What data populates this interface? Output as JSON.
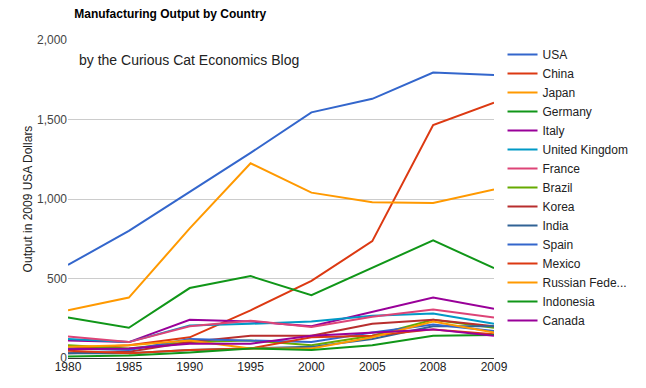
{
  "chart_data": {
    "type": "line",
    "title": "Manufacturing Output by Country",
    "annotations": [
      "by the Curious Cat Economics Blog"
    ],
    "y_label": "Output in 2009 USA Dollars",
    "categories": [
      "1980",
      "1985",
      "1990",
      "1995",
      "2000",
      "2005",
      "2008",
      "2009"
    ],
    "series": [
      {
        "name": "USA",
        "color": "#3366cc",
        "values": [
          585,
          800,
          1045,
          1290,
          1545,
          1630,
          1795,
          1780
        ]
      },
      {
        "name": "China",
        "color": "#dc3912",
        "values": [
          60,
          80,
          130,
          300,
          485,
          735,
          1465,
          1605
        ]
      },
      {
        "name": "Japan",
        "color": "#ff9900",
        "values": [
          300,
          380,
          815,
          1225,
          1040,
          980,
          975,
          1060
        ]
      },
      {
        "name": "Germany",
        "color": "#109618",
        "values": [
          255,
          190,
          440,
          515,
          395,
          570,
          740,
          565
        ]
      },
      {
        "name": "Italy",
        "color": "#990099",
        "values": [
          110,
          100,
          240,
          230,
          200,
          290,
          380,
          310
        ]
      },
      {
        "name": "United Kingdom",
        "color": "#0099c6",
        "values": [
          120,
          100,
          205,
          215,
          230,
          265,
          280,
          215
        ]
      },
      {
        "name": "France",
        "color": "#dd4477",
        "values": [
          135,
          100,
          200,
          235,
          195,
          260,
          305,
          255
        ]
      },
      {
        "name": "Brazil",
        "color": "#66aa00",
        "values": [
          80,
          60,
          100,
          110,
          80,
          140,
          240,
          190
        ]
      },
      {
        "name": "Korea",
        "color": "#b82e2e",
        "values": [
          30,
          40,
          100,
          140,
          140,
          215,
          240,
          200
        ]
      },
      {
        "name": "India",
        "color": "#316395",
        "values": [
          30,
          30,
          50,
          60,
          70,
          120,
          200,
          200
        ]
      },
      {
        "name": "Spain",
        "color": "#3366cc",
        "values": [
          60,
          50,
          120,
          110,
          100,
          160,
          210,
          170
        ]
      },
      {
        "name": "Mexico",
        "color": "#dc3912",
        "values": [
          45,
          30,
          50,
          60,
          130,
          140,
          180,
          150
        ]
      },
      {
        "name": "Russian Fede...",
        "color": "#ff9900",
        "values": [
          70,
          80,
          110,
          60,
          60,
          130,
          230,
          160
        ]
      },
      {
        "name": "Indonesia",
        "color": "#109618",
        "values": [
          10,
          15,
          35,
          60,
          50,
          80,
          140,
          145
        ]
      },
      {
        "name": "Canada",
        "color": "#990099",
        "values": [
          55,
          60,
          90,
          90,
          140,
          160,
          180,
          140
        ]
      }
    ],
    "ylim": [
      0,
      2000
    ],
    "yticks": [
      0,
      500,
      {
        "value": 1000,
        "label": "1,000"
      },
      {
        "value": 1500,
        "label": "1,500"
      },
      {
        "value": 2000,
        "label": "2,000"
      }
    ],
    "grid": true,
    "legend": "right"
  }
}
